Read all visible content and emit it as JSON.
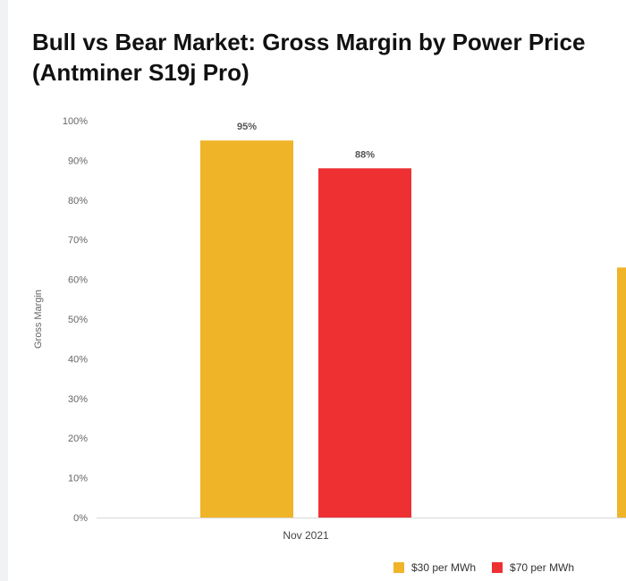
{
  "chart_data": {
    "type": "bar",
    "title": "Bull vs Bear Market: Gross Margin by Power Price",
    "subtitle": "(Antminer S19j Pro)",
    "xlabel": "",
    "ylabel": "Gross Margin",
    "categories": [
      "Nov 2021",
      ""
    ],
    "series": [
      {
        "name": "$30 per MWh",
        "color": "#f0b429",
        "values": [
          95,
          63
        ]
      },
      {
        "name": "$70 per MWh",
        "color": "#ee3033",
        "values": [
          88,
          null
        ]
      }
    ],
    "data_labels": [
      [
        "95%",
        null
      ],
      [
        "88%",
        null
      ]
    ],
    "ylim": [
      0,
      100
    ],
    "yticks": [
      "0%",
      "10%",
      "20%",
      "30%",
      "40%",
      "50%",
      "60%",
      "70%",
      "80%",
      "90%",
      "100%"
    ],
    "grid": false,
    "legend": "bottom-right"
  }
}
